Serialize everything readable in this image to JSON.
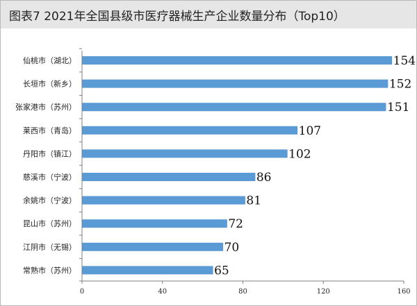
{
  "title": "图表7  2021年全国县级市医疗器械生产企业数量分布（Top10）",
  "chart_data": {
    "type": "bar",
    "orientation": "horizontal",
    "title": "图表7  2021年全国县级市医疗器械生产企业数量分布（Top10）",
    "xlabel": "",
    "ylabel": "",
    "xlim": [
      0,
      160
    ],
    "x_ticks": [
      0,
      40,
      80,
      120,
      160
    ],
    "grid": false,
    "legend": "none",
    "bar_color": "#5b9bd5",
    "categories": [
      "仙桃市（湖北）",
      "长垣市（新乡）",
      "张家港市（苏州）",
      "莱西市（青岛）",
      "丹阳市（镇江）",
      "慈溪市（宁波）",
      "余姚市（宁波）",
      "昆山市（苏州）",
      "江阴市（无锡）",
      "常熟市（苏州）"
    ],
    "values": [
      154,
      152,
      151,
      107,
      102,
      86,
      81,
      72,
      70,
      65
    ]
  }
}
